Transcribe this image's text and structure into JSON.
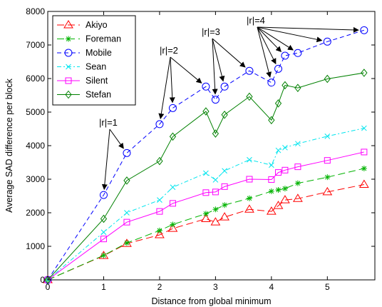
{
  "chart_data": {
    "type": "line",
    "xlabel": "Distance from global minimum",
    "ylabel": "Average SAD difference per block",
    "xlim": [
      0,
      5.85
    ],
    "ylim": [
      0,
      8000
    ],
    "xticks": [
      0,
      1,
      2,
      3,
      4,
      5
    ],
    "yticks": [
      0,
      1000,
      2000,
      3000,
      4000,
      5000,
      6000,
      7000,
      8000
    ],
    "grid": false,
    "legend_position": "top-left",
    "x": [
      0,
      1,
      1.414,
      2,
      2.236,
      2.828,
      3,
      3.162,
      3.606,
      4,
      4.123,
      4.243,
      4.472,
      5,
      5.657
    ],
    "series": [
      {
        "name": "Akiyo",
        "color": "#ff0000",
        "dash": "10 5",
        "marker": "triangle",
        "values": [
          0,
          720,
          1080,
          1340,
          1530,
          1820,
          1720,
          1870,
          2100,
          2040,
          2210,
          2380,
          2420,
          2620,
          2840
        ]
      },
      {
        "name": "Foreman",
        "color": "#00b300",
        "dash": "10 5",
        "marker": "star",
        "values": [
          0,
          730,
          1100,
          1470,
          1650,
          1970,
          2100,
          2230,
          2430,
          2640,
          2680,
          2720,
          2880,
          3060,
          3320
        ]
      },
      {
        "name": "Mobile",
        "color": "#0000ff",
        "dash": "6 4",
        "marker": "circle",
        "values": [
          0,
          2530,
          3780,
          4640,
          5120,
          5760,
          5370,
          5760,
          6230,
          5880,
          6290,
          6680,
          6760,
          7100,
          7440
        ]
      },
      {
        "name": "Sean",
        "color": "#00e5ee",
        "dash": "6 3 2 3",
        "marker": "x",
        "values": [
          0,
          1420,
          2000,
          2380,
          2760,
          3180,
          2980,
          3250,
          3580,
          3420,
          3860,
          3940,
          4060,
          4280,
          4520
        ]
      },
      {
        "name": "Silent",
        "color": "#ff00ff",
        "dash": "none",
        "marker": "square",
        "values": [
          0,
          1220,
          1720,
          2040,
          2280,
          2600,
          2620,
          2780,
          3000,
          2990,
          3200,
          3270,
          3370,
          3560,
          3810
        ]
      },
      {
        "name": "Stefan",
        "color": "#008000",
        "dash": "none",
        "marker": "diamond",
        "values": [
          0,
          1820,
          2960,
          3540,
          4270,
          5020,
          4360,
          4920,
          5460,
          4760,
          5260,
          5800,
          5720,
          5990,
          6170
        ]
      }
    ],
    "annotations": [
      {
        "text": "|r|=1",
        "targets_x": [
          1,
          1.414
        ]
      },
      {
        "text": "|r|=2",
        "targets_x": [
          2,
          2.236,
          2.828
        ]
      },
      {
        "text": "|r|=3",
        "targets_x": [
          3,
          3.162,
          3.606
        ]
      },
      {
        "text": "|r|=4",
        "targets_x": [
          4,
          4.123,
          4.243,
          4.472,
          5,
          5.657
        ]
      }
    ]
  }
}
